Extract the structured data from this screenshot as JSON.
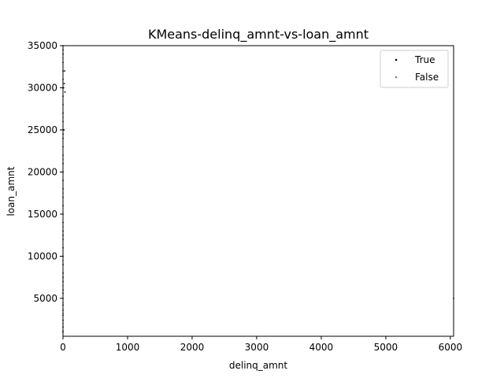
{
  "chart_data": {
    "type": "scatter",
    "title": "KMeans-delinq_amnt-vs-loan_amnt",
    "xlabel": "delinq_amnt",
    "ylabel": "loan_amnt",
    "xlim": [
      0,
      6050
    ],
    "ylim": [
      500,
      35000
    ],
    "xticks": [
      0,
      1000,
      2000,
      3000,
      4000,
      5000,
      6000
    ],
    "yticks": [
      5000,
      10000,
      15000,
      20000,
      25000,
      30000,
      35000
    ],
    "grid": false,
    "legend_position": "top-right",
    "series": [
      {
        "name": "True",
        "color": "#000000",
        "points": [
          [
            0,
            1000
          ],
          [
            0,
            1600
          ],
          [
            0,
            2400
          ],
          [
            0,
            3000
          ],
          [
            0,
            3600
          ],
          [
            0,
            4200
          ],
          [
            0,
            5000
          ],
          [
            0,
            5600
          ],
          [
            0,
            6000
          ],
          [
            0,
            7000
          ],
          [
            0,
            7500
          ],
          [
            0,
            8000
          ],
          [
            0,
            9000
          ],
          [
            0,
            10000
          ],
          [
            0,
            11000
          ],
          [
            0,
            12000
          ],
          [
            0,
            12500
          ],
          [
            0,
            13000
          ],
          [
            0,
            14000
          ],
          [
            0,
            15000
          ],
          [
            0,
            16000
          ],
          [
            0,
            17000
          ],
          [
            0,
            18000
          ],
          [
            0,
            19000
          ],
          [
            0,
            20000
          ],
          [
            0,
            21000
          ],
          [
            0,
            22000
          ],
          [
            0,
            23000
          ],
          [
            0,
            24000
          ],
          [
            0,
            24500
          ],
          [
            0,
            25000
          ],
          [
            0,
            26000
          ],
          [
            0,
            27000
          ],
          [
            0,
            28000
          ],
          [
            0,
            29000
          ],
          [
            0,
            30000
          ],
          [
            0,
            31000
          ],
          [
            0,
            32000
          ],
          [
            0,
            33000
          ],
          [
            0,
            34000
          ],
          [
            0,
            34500
          ],
          [
            0,
            35000
          ],
          [
            10,
            30000
          ],
          [
            15,
            25000
          ],
          [
            20,
            30500
          ],
          [
            25,
            32000
          ],
          [
            30,
            29500
          ],
          [
            6050,
            5000
          ]
        ]
      },
      {
        "name": "False",
        "color": "#808080",
        "points": [
          [
            0,
            1200
          ],
          [
            0,
            2000
          ],
          [
            0,
            3200
          ],
          [
            0,
            4500
          ],
          [
            0,
            6500
          ],
          [
            0,
            9500
          ],
          [
            0,
            13500
          ],
          [
            0,
            17500
          ],
          [
            0,
            21500
          ],
          [
            0,
            26500
          ],
          [
            0,
            30500
          ],
          [
            0,
            33500
          ]
        ]
      }
    ]
  }
}
